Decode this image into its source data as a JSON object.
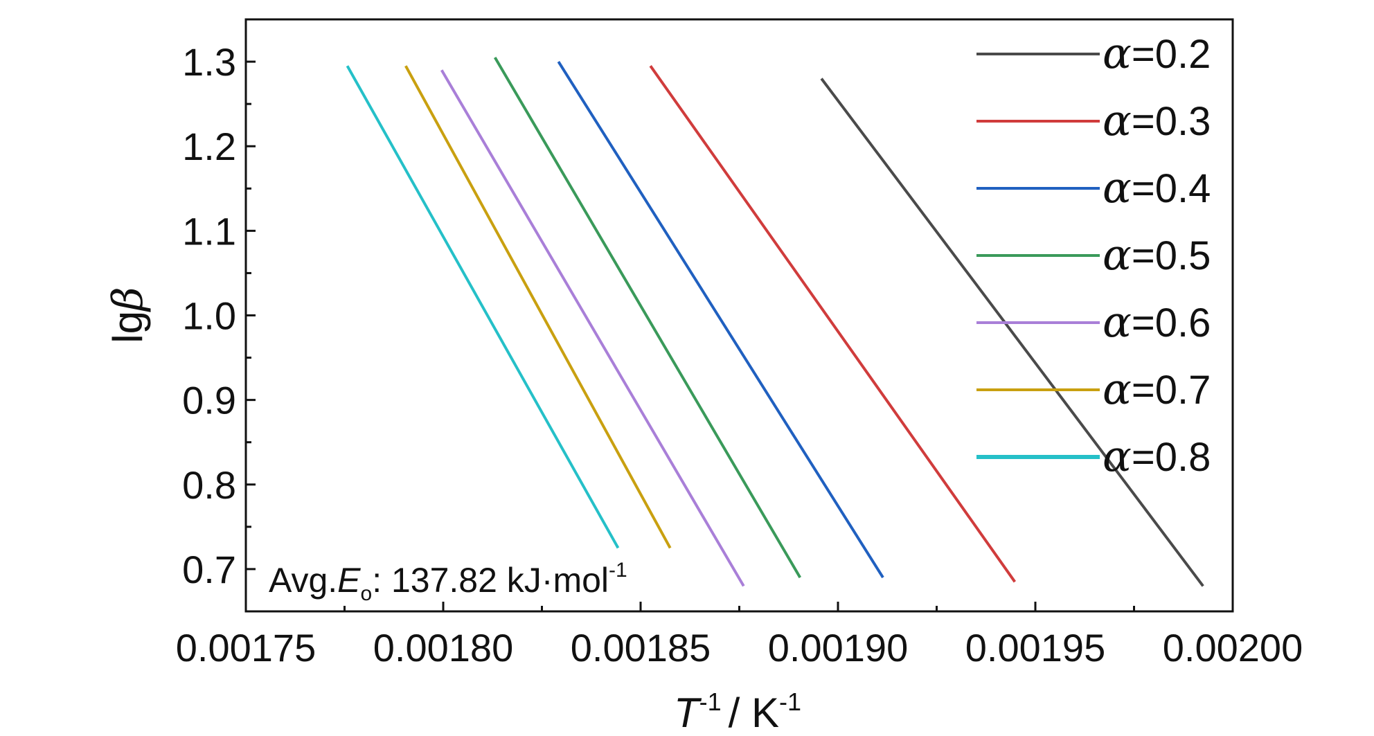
{
  "chart_data": {
    "type": "line",
    "title": "",
    "xlabel": {
      "symbol": "T",
      "sup": "-1",
      "unit": "/ K",
      "unit_sup": "-1"
    },
    "ylabel": {
      "prefix": "lg",
      "symbol": "β"
    },
    "xlim": [
      0.00175,
      0.002
    ],
    "ylim": [
      0.65,
      1.35
    ],
    "xticks": [
      0.00175,
      0.0018,
      0.00185,
      0.0019,
      0.00195,
      0.002
    ],
    "xtick_labels": [
      "0.00175",
      "0.00180",
      "0.00185",
      "0.00190",
      "0.00195",
      "0.00200"
    ],
    "yticks": [
      0.7,
      0.8,
      0.9,
      1.0,
      1.1,
      1.2,
      1.3
    ],
    "ytick_labels": [
      "0.7",
      "0.8",
      "0.9",
      "1.0",
      "1.1",
      "1.2",
      "1.3"
    ],
    "grid": false,
    "legend": "top-right",
    "series": [
      {
        "name": "α=0.2",
        "label_symbol": "α",
        "label_value": "=0.2",
        "color": "#4a4a4a",
        "x": [
          0.0018958,
          0.0019925
        ],
        "y": [
          1.28,
          0.68
        ]
      },
      {
        "name": "α=0.3",
        "label_symbol": "α",
        "label_value": "=0.3",
        "color": "#d03c3c",
        "x": [
          0.0018525,
          0.0019448
        ],
        "y": [
          1.295,
          0.685
        ]
      },
      {
        "name": "α=0.4",
        "label_symbol": "α",
        "label_value": "=0.4",
        "color": "#2060c0",
        "x": [
          0.0018292,
          0.0019114
        ],
        "y": [
          1.3,
          0.69
        ]
      },
      {
        "name": "α=0.5",
        "label_symbol": "α",
        "label_value": "=0.5",
        "color": "#3a9a5a",
        "x": [
          0.0018131,
          0.0018904
        ],
        "y": [
          1.305,
          0.69
        ]
      },
      {
        "name": "α=0.6",
        "label_symbol": "α",
        "label_value": "=0.6",
        "color": "#a97fd8",
        "x": [
          0.0017996,
          0.0018761
        ],
        "y": [
          1.29,
          0.68
        ]
      },
      {
        "name": "α=0.7",
        "label_symbol": "α",
        "label_value": "=0.7",
        "color": "#c9a010",
        "x": [
          0.0017905,
          0.0018575
        ],
        "y": [
          1.295,
          0.725
        ]
      },
      {
        "name": "α=0.8",
        "label_symbol": "α",
        "label_value": "=0.8",
        "color": "#25c0c8",
        "x": [
          0.0017757,
          0.0018443
        ],
        "y": [
          1.295,
          0.725
        ]
      }
    ],
    "annotation": {
      "prefix": "Avg.",
      "symbol": "E",
      "sub": "o",
      "value": ": 137.82 kJ·mol",
      "sup": "-1"
    }
  }
}
